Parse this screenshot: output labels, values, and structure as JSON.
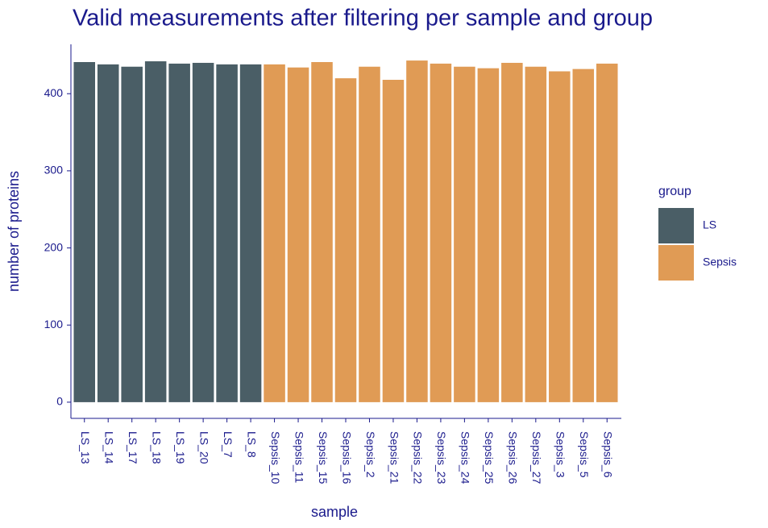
{
  "chart_data": {
    "type": "bar",
    "title": "Valid measurements after filtering per sample and group",
    "x_label": "sample",
    "y_label": "number of proteins",
    "legend_title": "group",
    "categories": [
      "LS_13",
      "LS_14",
      "LS_17",
      "LS_18",
      "LS_19",
      "LS_20",
      "LS_7",
      "LS_8",
      "Sepsis_10",
      "Sepsis_11",
      "Sepsis_15",
      "Sepsis_16",
      "Sepsis_2",
      "Sepsis_21",
      "Sepsis_22",
      "Sepsis_23",
      "Sepsis_24",
      "Sepsis_25",
      "Sepsis_26",
      "Sepsis_27",
      "Sepsis_3",
      "Sepsis_5",
      "Sepsis_6"
    ],
    "series": [
      {
        "name": "LS",
        "color": "#4a5e66",
        "values": [
          441,
          438,
          435,
          442,
          439,
          440,
          438,
          438,
          null,
          null,
          null,
          null,
          null,
          null,
          null,
          null,
          null,
          null,
          null,
          null,
          null,
          null,
          null
        ]
      },
      {
        "name": "Sepsis",
        "color": "#e09b55",
        "values": [
          null,
          null,
          null,
          null,
          null,
          null,
          null,
          null,
          438,
          434,
          441,
          420,
          435,
          418,
          443,
          439,
          435,
          433,
          440,
          435,
          429,
          432,
          439
        ]
      }
    ],
    "ylim": [
      -21,
      464
    ],
    "yticks": [
      0,
      100,
      200,
      300,
      400
    ],
    "grid": false,
    "legend": "right"
  }
}
